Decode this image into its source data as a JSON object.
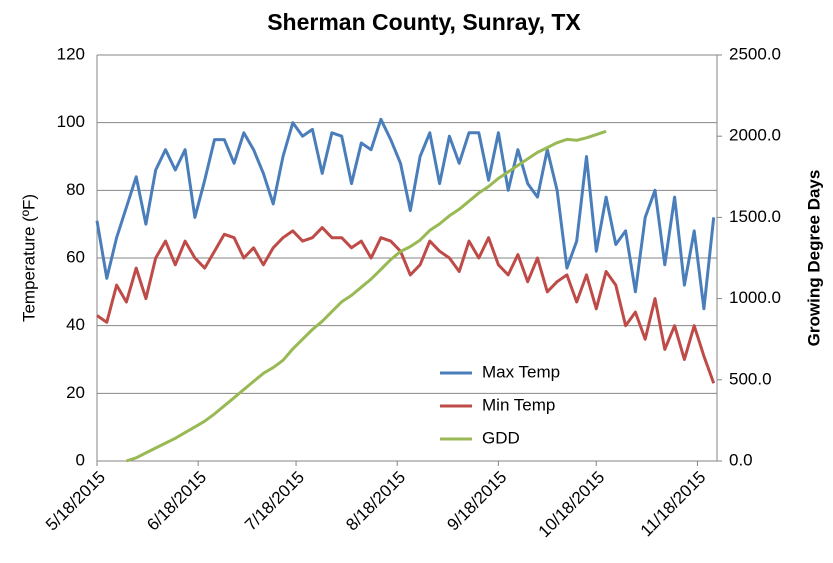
{
  "chart_data": {
    "type": "line",
    "title": "Sherman County, Sunray, TX",
    "ylabel": "Temperature (ºF)",
    "y2label": "Growing Degree Days",
    "x": [
      "5/18/2015",
      "5/21/2015",
      "5/24/2015",
      "5/27/2015",
      "5/30/2015",
      "6/2/2015",
      "6/5/2015",
      "6/8/2015",
      "6/11/2015",
      "6/14/2015",
      "6/17/2015",
      "6/20/2015",
      "6/23/2015",
      "6/26/2015",
      "6/29/2015",
      "7/2/2015",
      "7/5/2015",
      "7/8/2015",
      "7/11/2015",
      "7/14/2015",
      "7/17/2015",
      "7/20/2015",
      "7/23/2015",
      "7/26/2015",
      "7/29/2015",
      "8/1/2015",
      "8/4/2015",
      "8/7/2015",
      "8/10/2015",
      "8/13/2015",
      "8/16/2015",
      "8/19/2015",
      "8/22/2015",
      "8/25/2015",
      "8/28/2015",
      "8/31/2015",
      "9/3/2015",
      "9/6/2015",
      "9/9/2015",
      "9/12/2015",
      "9/15/2015",
      "9/18/2015",
      "9/21/2015",
      "9/24/2015",
      "9/27/2015",
      "9/30/2015",
      "10/3/2015",
      "10/6/2015",
      "10/9/2015",
      "10/12/2015",
      "10/15/2015",
      "10/18/2015",
      "10/21/2015",
      "10/24/2015",
      "10/27/2015",
      "10/30/2015",
      "11/2/2015",
      "11/5/2015",
      "11/8/2015",
      "11/11/2015",
      "11/14/2015",
      "11/17/2015",
      "11/20/2015",
      "11/23/2015"
    ],
    "series": [
      {
        "name": "Max Temp",
        "color": "#4a7ebb",
        "values": [
          71,
          54,
          66,
          75,
          84,
          70,
          86,
          92,
          86,
          92,
          72,
          83,
          95,
          95,
          88,
          97,
          92,
          85,
          76,
          90,
          100,
          96,
          98,
          85,
          97,
          96,
          82,
          94,
          92,
          101,
          95,
          88,
          74,
          90,
          97,
          82,
          96,
          88,
          97,
          97,
          83,
          97,
          80,
          92,
          82,
          78,
          92,
          80,
          57,
          65,
          90,
          62,
          78,
          64,
          68,
          50,
          72,
          80,
          58,
          78,
          52,
          68,
          45,
          72
        ]
      },
      {
        "name": "Min Temp",
        "color": "#be4b48",
        "values": [
          43,
          41,
          52,
          47,
          57,
          48,
          60,
          65,
          58,
          65,
          60,
          57,
          62,
          67,
          66,
          60,
          63,
          58,
          63,
          66,
          68,
          65,
          66,
          69,
          66,
          66,
          63,
          65,
          60,
          66,
          65,
          62,
          55,
          58,
          65,
          62,
          60,
          56,
          65,
          60,
          66,
          58,
          55,
          61,
          53,
          60,
          50,
          53,
          55,
          47,
          55,
          45,
          56,
          52,
          40,
          44,
          36,
          48,
          33,
          40,
          30,
          40,
          31,
          23
        ]
      },
      {
        "name": "GDD",
        "color": "#98b954",
        "axis": "y2",
        "values": [
          null,
          null,
          null,
          0,
          20,
          50,
          80,
          110,
          140,
          175,
          210,
          245,
          290,
          340,
          390,
          440,
          490,
          540,
          575,
          620,
          690,
          750,
          810,
          860,
          920,
          980,
          1020,
          1070,
          1120,
          1180,
          1240,
          1290,
          1320,
          1360,
          1420,
          1460,
          1510,
          1550,
          1600,
          1650,
          1690,
          1740,
          1780,
          1820,
          1860,
          1900,
          1930,
          1960,
          1980,
          1975,
          1990,
          2010,
          2030,
          null,
          null,
          null,
          null,
          null,
          null,
          null,
          null,
          null,
          null,
          null
        ]
      }
    ],
    "xlim": [
      "5/18/2015",
      "11/24/2015"
    ],
    "xticks": [
      "5/18/2015",
      "6/18/2015",
      "7/18/2015",
      "8/18/2015",
      "9/18/2015",
      "10/18/2015",
      "11/18/2015"
    ],
    "ylim": [
      0,
      120
    ],
    "yticks": [
      0,
      20,
      40,
      60,
      80,
      100,
      120
    ],
    "y2lim": [
      0,
      2500
    ],
    "y2ticks": [
      {
        "value": 0,
        "label": "0.0"
      },
      {
        "value": 500,
        "label": "500.0"
      },
      {
        "value": 1000,
        "label": "1000.0"
      },
      {
        "value": 1500,
        "label": "1500.0"
      },
      {
        "value": 2000,
        "label": "2000.0"
      },
      {
        "value": 2500,
        "label": "2500.0"
      }
    ],
    "grid": true,
    "legend": "lower center"
  }
}
